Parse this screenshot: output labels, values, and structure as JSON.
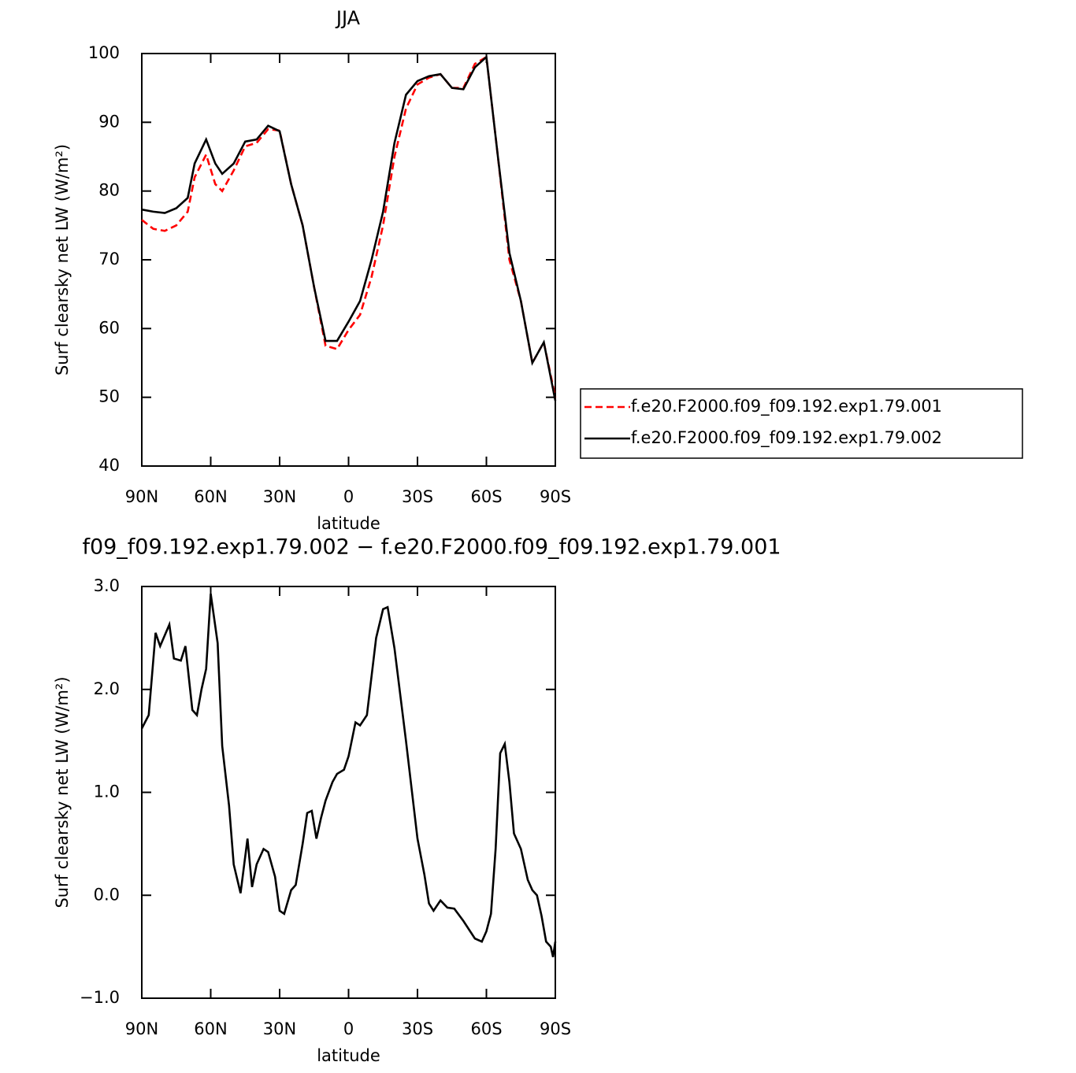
{
  "chart_data": [
    {
      "type": "line",
      "title": "JJA",
      "xlabel": "latitude",
      "ylabel": "Surf clearsky net LW (W/m²)",
      "x": [
        90,
        85,
        80,
        75,
        70,
        67,
        62,
        58,
        55,
        50,
        45,
        40,
        35,
        30,
        25,
        20,
        15,
        10,
        5,
        0,
        -5,
        -10,
        -15,
        -20,
        -25,
        -30,
        -35,
        -40,
        -45,
        -50,
        -55,
        -60,
        -65,
        -70,
        -75,
        -80,
        -85,
        -90
      ],
      "series": [
        {
          "name": "f.e20.F2000.f09_f09.192.exp1.79.001",
          "color": "#ff0000",
          "line_style": "dashed",
          "values": [
            75.8,
            74.5,
            74.2,
            75.0,
            77.0,
            82.0,
            85.3,
            81.0,
            80.0,
            83.0,
            86.5,
            87.0,
            89.0,
            88.8,
            81.0,
            75.0,
            66.0,
            57.5,
            57.0,
            59.8,
            62.0,
            67.5,
            75.0,
            85.0,
            92.0,
            95.5,
            96.5,
            97.0,
            95.0,
            95.0,
            98.5,
            99.5,
            85.0,
            70.0,
            64.0,
            55.0,
            58.0,
            50.0
          ]
        },
        {
          "name": "f.e20.F2000.f09_f09.192.exp1.79.002",
          "color": "#000000",
          "line_style": "solid",
          "values": [
            77.3,
            77.0,
            76.8,
            77.5,
            79.0,
            84.0,
            87.5,
            84.0,
            82.5,
            84.0,
            87.2,
            87.5,
            89.5,
            88.7,
            81.0,
            75.0,
            66.0,
            58.2,
            58.2,
            61.0,
            64.0,
            70.0,
            77.0,
            87.0,
            94.0,
            96.0,
            96.7,
            97.0,
            95.0,
            94.8,
            98.0,
            99.5,
            85.0,
            71.0,
            64.0,
            55.0,
            58.0,
            49.5
          ]
        }
      ],
      "xlim": [
        90,
        -90
      ],
      "xticks": [
        {
          "value": 90,
          "label": "90N"
        },
        {
          "value": 60,
          "label": "60N"
        },
        {
          "value": 30,
          "label": "30N"
        },
        0,
        {
          "value": -30,
          "label": "30S"
        },
        {
          "value": -60,
          "label": "60S"
        },
        {
          "value": -90,
          "label": "90S"
        }
      ],
      "ylim": [
        40,
        100
      ],
      "yticks": [
        40,
        50,
        60,
        70,
        80,
        90,
        100
      ],
      "legend": "right"
    },
    {
      "type": "line",
      "title": "f09_f09.192.exp1.79.002 − f.e20.F2000.f09_f09.192.exp1.79.001",
      "xlabel": "latitude",
      "ylabel": "Surf clearsky net LW (W/m²)",
      "x": [
        90,
        87,
        84,
        82,
        78,
        76,
        73,
        71,
        68,
        66,
        64,
        62,
        60,
        57,
        55,
        52,
        50,
        47,
        44,
        42,
        40,
        37,
        35,
        32,
        30,
        28,
        25,
        23,
        20,
        18,
        16,
        14,
        12,
        10,
        7,
        5,
        2,
        0,
        -3,
        -5,
        -8,
        -12,
        -15,
        -17,
        -20,
        -25,
        -30,
        -33,
        -35,
        -37,
        -40,
        -43,
        -46,
        -50,
        -55,
        -58,
        -60,
        -62,
        -64,
        -66,
        -68,
        -70,
        -72,
        -75,
        -78,
        -80,
        -82,
        -84,
        -86,
        -88,
        -89,
        -90
      ],
      "values": [
        1.62,
        1.75,
        2.55,
        2.42,
        2.63,
        2.3,
        2.28,
        2.42,
        1.8,
        1.75,
        2.0,
        2.2,
        2.93,
        2.45,
        1.45,
        0.87,
        0.3,
        0.02,
        0.55,
        0.08,
        0.3,
        0.45,
        0.42,
        0.18,
        -0.15,
        -0.18,
        0.05,
        0.1,
        0.5,
        0.8,
        0.82,
        0.55,
        0.75,
        0.92,
        1.1,
        1.18,
        1.22,
        1.35,
        1.68,
        1.65,
        1.75,
        2.5,
        2.78,
        2.8,
        2.4,
        1.5,
        0.55,
        0.2,
        -0.08,
        -0.15,
        -0.05,
        -0.12,
        -0.13,
        -0.25,
        -0.42,
        -0.45,
        -0.35,
        -0.18,
        0.45,
        1.38,
        1.47,
        1.1,
        0.6,
        0.45,
        0.15,
        0.05,
        0.0,
        -0.2,
        -0.45,
        -0.5,
        -0.6,
        -0.45
      ],
      "color": "#000000",
      "xlim": [
        90,
        -90
      ],
      "xticks": [
        {
          "value": 90,
          "label": "90N"
        },
        {
          "value": 60,
          "label": "60N"
        },
        {
          "value": 30,
          "label": "30N"
        },
        0,
        {
          "value": -30,
          "label": "30S"
        },
        {
          "value": -60,
          "label": "60S"
        },
        {
          "value": -90,
          "label": "90S"
        }
      ],
      "ylim": [
        -1,
        3
      ],
      "yticks": [
        {
          "value": -1,
          "label": "−1.0"
        },
        {
          "value": 0,
          "label": "0.0"
        },
        {
          "value": 1,
          "label": "1.0"
        },
        {
          "value": 2,
          "label": "2.0"
        },
        {
          "value": 3,
          "label": "3.0"
        }
      ]
    }
  ]
}
